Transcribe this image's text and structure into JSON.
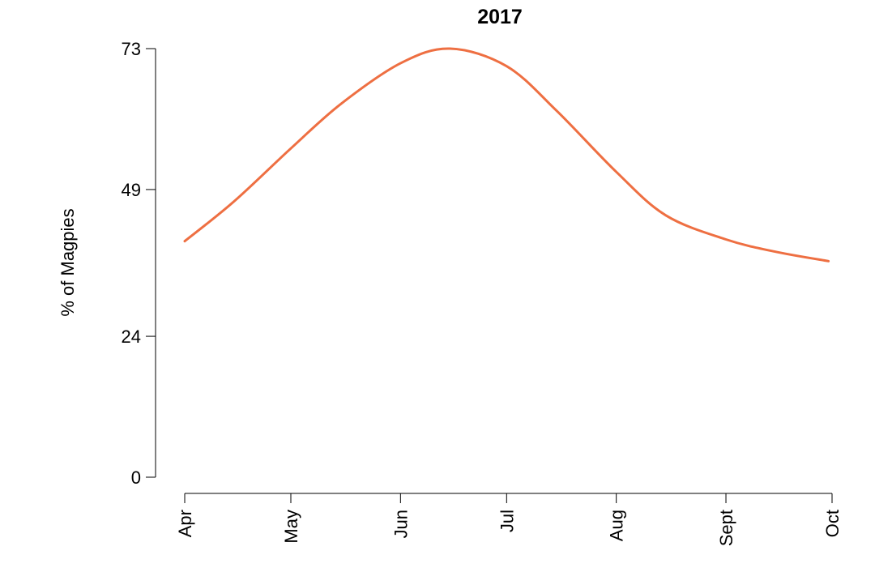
{
  "chart_data": {
    "type": "line",
    "title": "2017",
    "xlabel": "",
    "ylabel": "% of Magpies",
    "ylim": [
      0,
      73
    ],
    "yticks": [
      0,
      24,
      49,
      73
    ],
    "categories": [
      "Apr",
      "May",
      "Jun",
      "Jul",
      "Aug",
      "Sept",
      "Oct"
    ],
    "x": [
      "2017-04-01",
      "2017-04-15",
      "2017-05-01",
      "2017-05-15",
      "2017-06-01",
      "2017-06-15",
      "2017-07-01",
      "2017-07-15",
      "2017-08-01",
      "2017-08-15",
      "2017-09-01",
      "2017-09-15",
      "2017-09-30"
    ],
    "series": [
      {
        "values": [
          40.2,
          47.0,
          56.0,
          63.5,
          70.5,
          73.0,
          70.0,
          62.5,
          52.0,
          44.6,
          40.5,
          38.4,
          36.8
        ]
      }
    ],
    "line_color": "#ee6f42",
    "grid": false,
    "legend": "none"
  }
}
